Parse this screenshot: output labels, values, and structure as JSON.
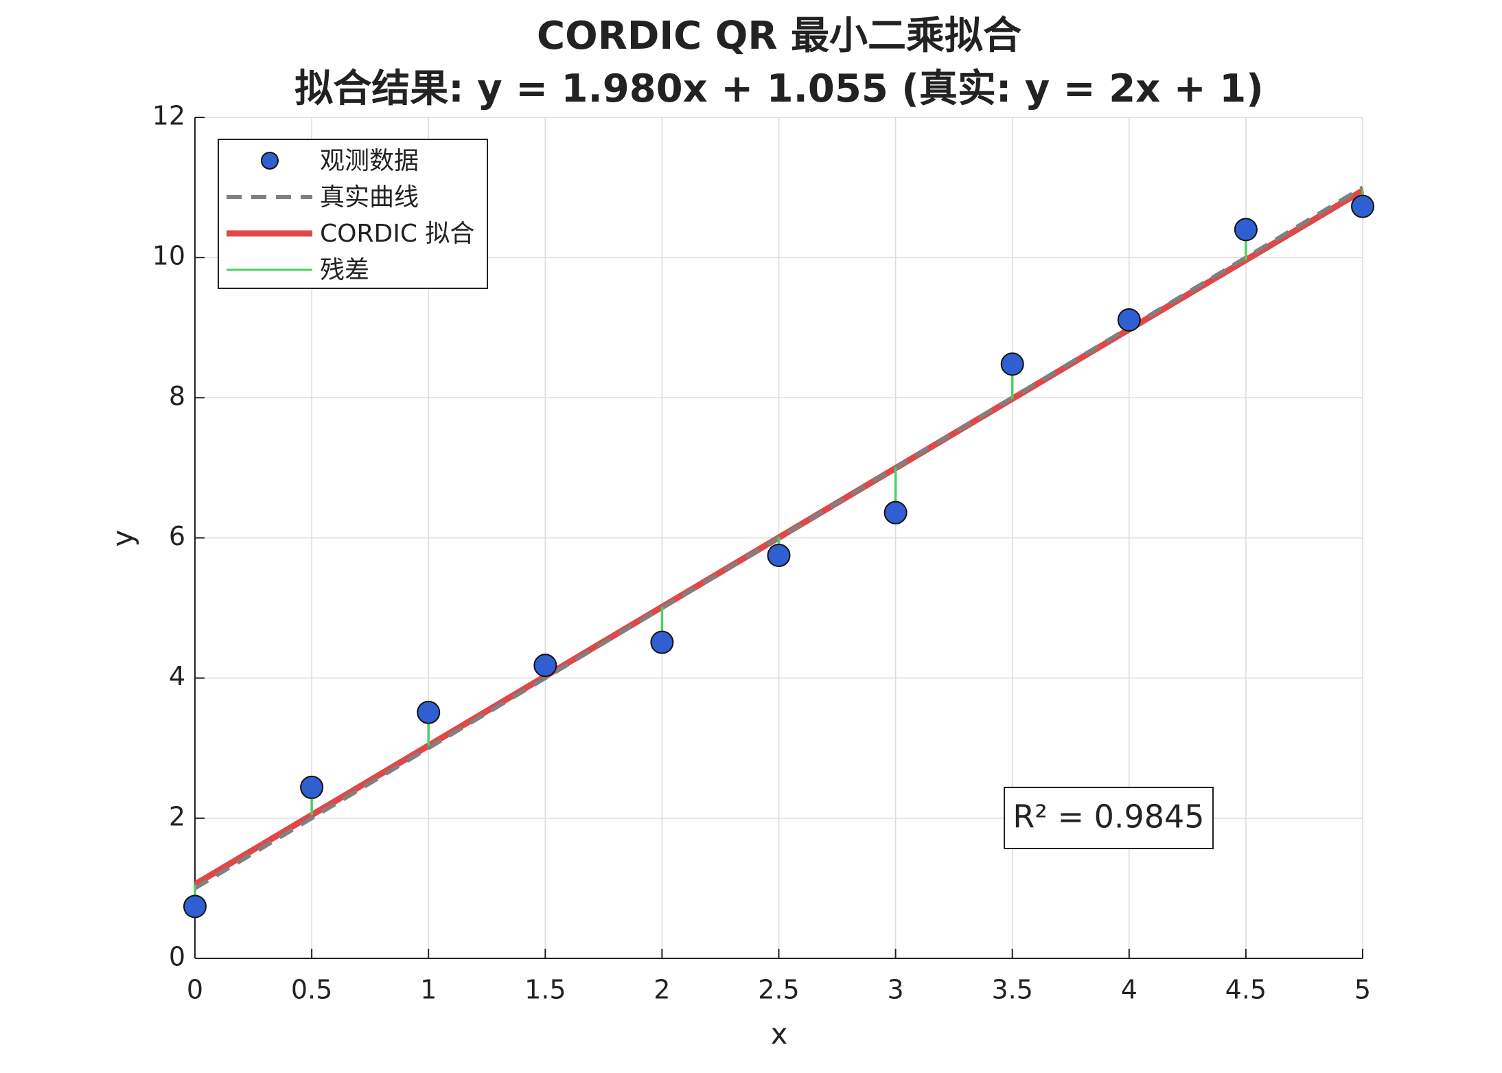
{
  "chart_data": {
    "type": "line",
    "title": "CORDIC QR 最小二乘拟合",
    "subtitle": "拟合结果: y = 1.980x + 1.055 (真实: y = 2x + 1)",
    "x_label": "x",
    "y_label": "y",
    "annotation": "R² = 0.9845",
    "series": [
      {
        "name": "观测数据",
        "color": "#2f5fd0",
        "style": "markers",
        "x": [
          0,
          0.5,
          1,
          1.5,
          2,
          2.5,
          3,
          3.5,
          4,
          4.5,
          5
        ],
        "values": [
          0.74,
          2.44,
          3.51,
          4.18,
          4.51,
          5.75,
          6.36,
          8.48,
          9.11,
          10.4,
          10.73
        ]
      },
      {
        "name": "真实曲线",
        "color": "#808080",
        "style": "dashed",
        "x": [
          0,
          5
        ],
        "values": [
          1,
          11
        ]
      },
      {
        "name": "CORDIC 拟合",
        "color": "#e04848",
        "style": "solid",
        "x": [
          0,
          5
        ],
        "values": [
          1.055,
          10.955
        ]
      },
      {
        "name": "残差",
        "color": "#4cd060",
        "style": "residual"
      }
    ],
    "xlim": [
      0,
      5
    ],
    "xticks": [
      0,
      0.5,
      1,
      1.5,
      2,
      2.5,
      3,
      3.5,
      4,
      4.5,
      5
    ],
    "ylim": [
      0,
      12
    ],
    "yticks": [
      0,
      2,
      4,
      6,
      8,
      10,
      12
    ],
    "grid": true,
    "legend": "upper-left"
  }
}
